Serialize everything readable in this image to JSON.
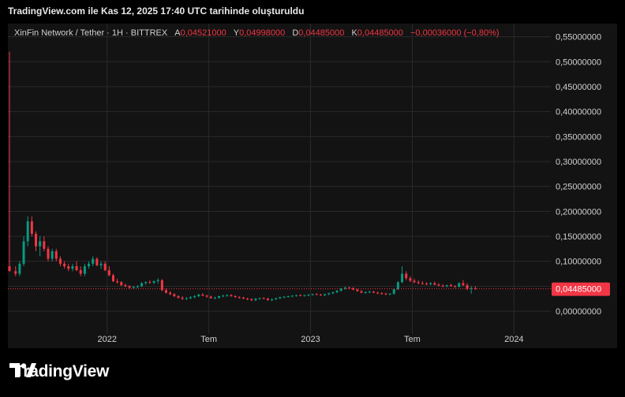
{
  "header": {
    "title": "TradingView.com ile Kas 12, 2025 17:40 UTC tarihinde oluşturuldu"
  },
  "legend": {
    "symbol": "XinFin Network / Tether · 1H · BITTREX",
    "open_label": "A",
    "open": "0,04521000",
    "high_label": "Y",
    "high": "0,04998000",
    "low_label": "D",
    "low": "0,04485000",
    "close_label": "K",
    "close": "0,04485000",
    "change": "−0,00036000 (−0,80%)"
  },
  "price_tag": "0,04485000",
  "brand": "TradingView",
  "colors": {
    "up": "#089981",
    "down": "#f23645",
    "grid": "#2a2a2a",
    "background": "#131313"
  },
  "chart_data": {
    "type": "candlestick",
    "y_ticks": [
      "0,55000000",
      "0,50000000",
      "0,45000000",
      "0,40000000",
      "0,35000000",
      "0,30000000",
      "0,25000000",
      "0,20000000",
      "0,15000000",
      "0,10000000",
      "0,05000000",
      "0,00000000"
    ],
    "y_tick_values": [
      0.55,
      0.5,
      0.45,
      0.4,
      0.35,
      0.3,
      0.25,
      0.2,
      0.15,
      0.1,
      0.05,
      0.0
    ],
    "x_ticks": [
      {
        "label": "2022",
        "t": 2022.0
      },
      {
        "label": "Tem",
        "t": 2022.5
      },
      {
        "label": "2023",
        "t": 2023.0
      },
      {
        "label": "Tem",
        "t": 2023.5
      },
      {
        "label": "2024",
        "t": 2024.0
      }
    ],
    "ylim": [
      -0.03,
      0.57
    ],
    "xlim": [
      2021.52,
      2024.15
    ],
    "last_price": 0.04485,
    "candles": [
      {
        "t": 2021.52,
        "o": 0.09,
        "h": 0.52,
        "l": 0.08,
        "c": 0.08
      },
      {
        "t": 2021.55,
        "o": 0.08,
        "h": 0.09,
        "l": 0.07,
        "c": 0.075
      },
      {
        "t": 2021.57,
        "o": 0.075,
        "h": 0.1,
        "l": 0.07,
        "c": 0.095
      },
      {
        "t": 2021.59,
        "o": 0.095,
        "h": 0.15,
        "l": 0.09,
        "c": 0.14
      },
      {
        "t": 2021.61,
        "o": 0.14,
        "h": 0.19,
        "l": 0.13,
        "c": 0.18
      },
      {
        "t": 2021.63,
        "o": 0.18,
        "h": 0.19,
        "l": 0.15,
        "c": 0.155
      },
      {
        "t": 2021.65,
        "o": 0.155,
        "h": 0.16,
        "l": 0.12,
        "c": 0.13
      },
      {
        "t": 2021.67,
        "o": 0.13,
        "h": 0.15,
        "l": 0.11,
        "c": 0.14
      },
      {
        "t": 2021.69,
        "o": 0.14,
        "h": 0.15,
        "l": 0.12,
        "c": 0.125
      },
      {
        "t": 2021.71,
        "o": 0.125,
        "h": 0.13,
        "l": 0.1,
        "c": 0.105
      },
      {
        "t": 2021.73,
        "o": 0.105,
        "h": 0.125,
        "l": 0.1,
        "c": 0.12
      },
      {
        "t": 2021.75,
        "o": 0.12,
        "h": 0.125,
        "l": 0.1,
        "c": 0.105
      },
      {
        "t": 2021.77,
        "o": 0.105,
        "h": 0.11,
        "l": 0.09,
        "c": 0.095
      },
      {
        "t": 2021.79,
        "o": 0.095,
        "h": 0.1,
        "l": 0.085,
        "c": 0.09
      },
      {
        "t": 2021.81,
        "o": 0.09,
        "h": 0.095,
        "l": 0.08,
        "c": 0.085
      },
      {
        "t": 2021.83,
        "o": 0.085,
        "h": 0.095,
        "l": 0.08,
        "c": 0.09
      },
      {
        "t": 2021.85,
        "o": 0.09,
        "h": 0.1,
        "l": 0.08,
        "c": 0.082
      },
      {
        "t": 2021.87,
        "o": 0.082,
        "h": 0.09,
        "l": 0.07,
        "c": 0.075
      },
      {
        "t": 2021.89,
        "o": 0.075,
        "h": 0.095,
        "l": 0.07,
        "c": 0.09
      },
      {
        "t": 2021.91,
        "o": 0.09,
        "h": 0.1,
        "l": 0.085,
        "c": 0.095
      },
      {
        "t": 2021.93,
        "o": 0.095,
        "h": 0.11,
        "l": 0.09,
        "c": 0.105
      },
      {
        "t": 2021.95,
        "o": 0.105,
        "h": 0.108,
        "l": 0.09,
        "c": 0.092
      },
      {
        "t": 2021.97,
        "o": 0.092,
        "h": 0.1,
        "l": 0.085,
        "c": 0.095
      },
      {
        "t": 2021.99,
        "o": 0.095,
        "h": 0.1,
        "l": 0.08,
        "c": 0.082
      },
      {
        "t": 2022.01,
        "o": 0.082,
        "h": 0.09,
        "l": 0.07,
        "c": 0.072
      },
      {
        "t": 2022.03,
        "o": 0.072,
        "h": 0.075,
        "l": 0.058,
        "c": 0.06
      },
      {
        "t": 2022.05,
        "o": 0.06,
        "h": 0.065,
        "l": 0.055,
        "c": 0.058
      },
      {
        "t": 2022.07,
        "o": 0.058,
        "h": 0.06,
        "l": 0.05,
        "c": 0.052
      },
      {
        "t": 2022.09,
        "o": 0.052,
        "h": 0.055,
        "l": 0.048,
        "c": 0.05
      },
      {
        "t": 2022.11,
        "o": 0.05,
        "h": 0.052,
        "l": 0.045,
        "c": 0.047
      },
      {
        "t": 2022.13,
        "o": 0.047,
        "h": 0.05,
        "l": 0.044,
        "c": 0.049
      },
      {
        "t": 2022.15,
        "o": 0.049,
        "h": 0.052,
        "l": 0.046,
        "c": 0.05
      },
      {
        "t": 2022.17,
        "o": 0.05,
        "h": 0.058,
        "l": 0.048,
        "c": 0.056
      },
      {
        "t": 2022.19,
        "o": 0.056,
        "h": 0.06,
        "l": 0.053,
        "c": 0.058
      },
      {
        "t": 2022.21,
        "o": 0.058,
        "h": 0.062,
        "l": 0.055,
        "c": 0.057
      },
      {
        "t": 2022.23,
        "o": 0.057,
        "h": 0.062,
        "l": 0.054,
        "c": 0.06
      },
      {
        "t": 2022.25,
        "o": 0.06,
        "h": 0.066,
        "l": 0.055,
        "c": 0.062
      },
      {
        "t": 2022.27,
        "o": 0.062,
        "h": 0.064,
        "l": 0.04,
        "c": 0.042
      },
      {
        "t": 2022.29,
        "o": 0.042,
        "h": 0.045,
        "l": 0.035,
        "c": 0.037
      },
      {
        "t": 2022.31,
        "o": 0.037,
        "h": 0.04,
        "l": 0.032,
        "c": 0.034
      },
      {
        "t": 2022.33,
        "o": 0.034,
        "h": 0.036,
        "l": 0.028,
        "c": 0.03
      },
      {
        "t": 2022.35,
        "o": 0.03,
        "h": 0.032,
        "l": 0.025,
        "c": 0.027
      },
      {
        "t": 2022.37,
        "o": 0.027,
        "h": 0.03,
        "l": 0.022,
        "c": 0.025
      },
      {
        "t": 2022.39,
        "o": 0.025,
        "h": 0.028,
        "l": 0.022,
        "c": 0.026
      },
      {
        "t": 2022.41,
        "o": 0.026,
        "h": 0.03,
        "l": 0.024,
        "c": 0.028
      },
      {
        "t": 2022.43,
        "o": 0.028,
        "h": 0.032,
        "l": 0.026,
        "c": 0.03
      },
      {
        "t": 2022.45,
        "o": 0.03,
        "h": 0.035,
        "l": 0.028,
        "c": 0.033
      },
      {
        "t": 2022.47,
        "o": 0.033,
        "h": 0.036,
        "l": 0.03,
        "c": 0.031
      },
      {
        "t": 2022.49,
        "o": 0.031,
        "h": 0.033,
        "l": 0.027,
        "c": 0.029
      },
      {
        "t": 2022.51,
        "o": 0.029,
        "h": 0.031,
        "l": 0.025,
        "c": 0.026
      },
      {
        "t": 2022.53,
        "o": 0.026,
        "h": 0.029,
        "l": 0.024,
        "c": 0.027
      },
      {
        "t": 2022.55,
        "o": 0.027,
        "h": 0.031,
        "l": 0.025,
        "c": 0.03
      },
      {
        "t": 2022.57,
        "o": 0.03,
        "h": 0.033,
        "l": 0.028,
        "c": 0.031
      },
      {
        "t": 2022.59,
        "o": 0.031,
        "h": 0.034,
        "l": 0.029,
        "c": 0.032
      },
      {
        "t": 2022.61,
        "o": 0.032,
        "h": 0.034,
        "l": 0.029,
        "c": 0.03
      },
      {
        "t": 2022.63,
        "o": 0.03,
        "h": 0.032,
        "l": 0.027,
        "c": 0.028
      },
      {
        "t": 2022.65,
        "o": 0.028,
        "h": 0.03,
        "l": 0.025,
        "c": 0.027
      },
      {
        "t": 2022.67,
        "o": 0.027,
        "h": 0.029,
        "l": 0.024,
        "c": 0.025
      },
      {
        "t": 2022.69,
        "o": 0.025,
        "h": 0.027,
        "l": 0.022,
        "c": 0.024
      },
      {
        "t": 2022.71,
        "o": 0.024,
        "h": 0.026,
        "l": 0.02,
        "c": 0.022
      },
      {
        "t": 2022.73,
        "o": 0.022,
        "h": 0.026,
        "l": 0.02,
        "c": 0.025
      },
      {
        "t": 2022.75,
        "o": 0.025,
        "h": 0.027,
        "l": 0.023,
        "c": 0.026
      },
      {
        "t": 2022.77,
        "o": 0.026,
        "h": 0.028,
        "l": 0.024,
        "c": 0.025
      },
      {
        "t": 2022.79,
        "o": 0.025,
        "h": 0.027,
        "l": 0.021,
        "c": 0.022
      },
      {
        "t": 2022.81,
        "o": 0.022,
        "h": 0.025,
        "l": 0.02,
        "c": 0.024
      },
      {
        "t": 2022.83,
        "o": 0.024,
        "h": 0.027,
        "l": 0.022,
        "c": 0.026
      },
      {
        "t": 2022.85,
        "o": 0.026,
        "h": 0.029,
        "l": 0.024,
        "c": 0.028
      },
      {
        "t": 2022.87,
        "o": 0.028,
        "h": 0.03,
        "l": 0.026,
        "c": 0.029
      },
      {
        "t": 2022.89,
        "o": 0.029,
        "h": 0.031,
        "l": 0.027,
        "c": 0.03
      },
      {
        "t": 2022.91,
        "o": 0.03,
        "h": 0.032,
        "l": 0.028,
        "c": 0.031
      },
      {
        "t": 2022.93,
        "o": 0.031,
        "h": 0.033,
        "l": 0.029,
        "c": 0.032
      },
      {
        "t": 2022.95,
        "o": 0.032,
        "h": 0.034,
        "l": 0.03,
        "c": 0.031
      },
      {
        "t": 2022.97,
        "o": 0.031,
        "h": 0.033,
        "l": 0.029,
        "c": 0.032
      },
      {
        "t": 2022.99,
        "o": 0.032,
        "h": 0.034,
        "l": 0.03,
        "c": 0.033
      },
      {
        "t": 2023.01,
        "o": 0.033,
        "h": 0.035,
        "l": 0.031,
        "c": 0.034
      },
      {
        "t": 2023.03,
        "o": 0.034,
        "h": 0.036,
        "l": 0.032,
        "c": 0.033
      },
      {
        "t": 2023.05,
        "o": 0.033,
        "h": 0.035,
        "l": 0.031,
        "c": 0.032
      },
      {
        "t": 2023.07,
        "o": 0.032,
        "h": 0.035,
        "l": 0.03,
        "c": 0.034
      },
      {
        "t": 2023.09,
        "o": 0.034,
        "h": 0.037,
        "l": 0.032,
        "c": 0.036
      },
      {
        "t": 2023.11,
        "o": 0.036,
        "h": 0.039,
        "l": 0.034,
        "c": 0.038
      },
      {
        "t": 2023.13,
        "o": 0.038,
        "h": 0.042,
        "l": 0.036,
        "c": 0.041
      },
      {
        "t": 2023.15,
        "o": 0.041,
        "h": 0.046,
        "l": 0.039,
        "c": 0.045
      },
      {
        "t": 2023.17,
        "o": 0.045,
        "h": 0.049,
        "l": 0.043,
        "c": 0.047
      },
      {
        "t": 2023.19,
        "o": 0.047,
        "h": 0.049,
        "l": 0.044,
        "c": 0.046
      },
      {
        "t": 2023.21,
        "o": 0.046,
        "h": 0.048,
        "l": 0.042,
        "c": 0.043
      },
      {
        "t": 2023.23,
        "o": 0.043,
        "h": 0.045,
        "l": 0.039,
        "c": 0.04
      },
      {
        "t": 2023.25,
        "o": 0.04,
        "h": 0.042,
        "l": 0.036,
        "c": 0.037
      },
      {
        "t": 2023.27,
        "o": 0.037,
        "h": 0.04,
        "l": 0.035,
        "c": 0.038
      },
      {
        "t": 2023.29,
        "o": 0.038,
        "h": 0.041,
        "l": 0.036,
        "c": 0.039
      },
      {
        "t": 2023.31,
        "o": 0.039,
        "h": 0.041,
        "l": 0.036,
        "c": 0.037
      },
      {
        "t": 2023.33,
        "o": 0.037,
        "h": 0.039,
        "l": 0.034,
        "c": 0.036
      },
      {
        "t": 2023.35,
        "o": 0.036,
        "h": 0.038,
        "l": 0.033,
        "c": 0.035
      },
      {
        "t": 2023.37,
        "o": 0.035,
        "h": 0.037,
        "l": 0.032,
        "c": 0.034
      },
      {
        "t": 2023.39,
        "o": 0.034,
        "h": 0.036,
        "l": 0.032,
        "c": 0.035
      },
      {
        "t": 2023.41,
        "o": 0.035,
        "h": 0.045,
        "l": 0.033,
        "c": 0.044
      },
      {
        "t": 2023.43,
        "o": 0.044,
        "h": 0.06,
        "l": 0.042,
        "c": 0.058
      },
      {
        "t": 2023.45,
        "o": 0.058,
        "h": 0.09,
        "l": 0.056,
        "c": 0.075
      },
      {
        "t": 2023.47,
        "o": 0.075,
        "h": 0.08,
        "l": 0.062,
        "c": 0.066
      },
      {
        "t": 2023.49,
        "o": 0.066,
        "h": 0.07,
        "l": 0.058,
        "c": 0.061
      },
      {
        "t": 2023.51,
        "o": 0.061,
        "h": 0.065,
        "l": 0.056,
        "c": 0.058
      },
      {
        "t": 2023.53,
        "o": 0.058,
        "h": 0.062,
        "l": 0.054,
        "c": 0.056
      },
      {
        "t": 2023.55,
        "o": 0.056,
        "h": 0.06,
        "l": 0.053,
        "c": 0.055
      },
      {
        "t": 2023.57,
        "o": 0.055,
        "h": 0.058,
        "l": 0.052,
        "c": 0.054
      },
      {
        "t": 2023.59,
        "o": 0.054,
        "h": 0.058,
        "l": 0.052,
        "c": 0.056
      },
      {
        "t": 2023.61,
        "o": 0.056,
        "h": 0.059,
        "l": 0.052,
        "c": 0.053
      },
      {
        "t": 2023.63,
        "o": 0.053,
        "h": 0.056,
        "l": 0.05,
        "c": 0.051
      },
      {
        "t": 2023.65,
        "o": 0.051,
        "h": 0.054,
        "l": 0.048,
        "c": 0.05
      },
      {
        "t": 2023.67,
        "o": 0.05,
        "h": 0.053,
        "l": 0.048,
        "c": 0.052
      },
      {
        "t": 2023.69,
        "o": 0.052,
        "h": 0.055,
        "l": 0.049,
        "c": 0.05
      },
      {
        "t": 2023.71,
        "o": 0.05,
        "h": 0.052,
        "l": 0.047,
        "c": 0.049
      },
      {
        "t": 2023.73,
        "o": 0.049,
        "h": 0.058,
        "l": 0.047,
        "c": 0.056
      },
      {
        "t": 2023.75,
        "o": 0.056,
        "h": 0.062,
        "l": 0.05,
        "c": 0.052
      },
      {
        "t": 2023.77,
        "o": 0.052,
        "h": 0.056,
        "l": 0.042,
        "c": 0.045
      },
      {
        "t": 2023.79,
        "o": 0.045,
        "h": 0.05,
        "l": 0.035,
        "c": 0.046
      },
      {
        "t": 2023.81,
        "o": 0.046,
        "h": 0.05,
        "l": 0.043,
        "c": 0.0449
      }
    ]
  }
}
